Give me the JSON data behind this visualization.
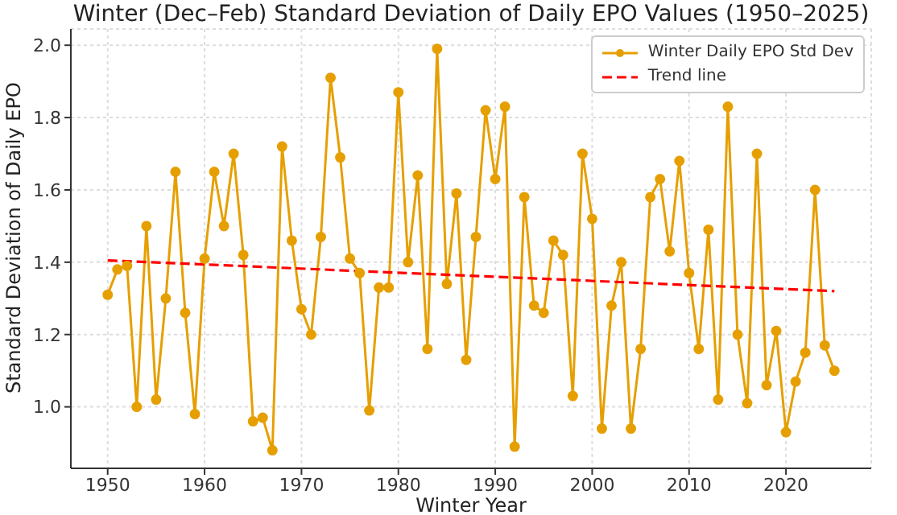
{
  "chart_data": {
    "type": "line",
    "title": "Winter (Dec–Feb) Standard Deviation of Daily EPO Values (1950–2025)",
    "xlabel": "Winter Year",
    "ylabel": "Standard Deviation of Daily EPO",
    "x": [
      1950,
      1951,
      1952,
      1953,
      1954,
      1955,
      1956,
      1957,
      1958,
      1959,
      1960,
      1961,
      1962,
      1963,
      1964,
      1965,
      1966,
      1967,
      1968,
      1969,
      1970,
      1971,
      1972,
      1973,
      1974,
      1975,
      1976,
      1977,
      1978,
      1979,
      1980,
      1981,
      1982,
      1983,
      1984,
      1985,
      1986,
      1987,
      1988,
      1989,
      1990,
      1991,
      1992,
      1993,
      1994,
      1995,
      1996,
      1997,
      1998,
      1999,
      2000,
      2001,
      2002,
      2003,
      2004,
      2005,
      2006,
      2007,
      2008,
      2009,
      2010,
      2011,
      2012,
      2013,
      2014,
      2015,
      2016,
      2017,
      2018,
      2019,
      2020,
      2021,
      2022,
      2023,
      2024,
      2025
    ],
    "series": [
      {
        "name": "Winter Daily EPO Std Dev",
        "color": "#e69f00",
        "marker": "circle",
        "line_style": "solid",
        "values": [
          1.31,
          1.38,
          1.39,
          1.0,
          1.5,
          1.02,
          1.3,
          1.65,
          1.26,
          0.98,
          1.41,
          1.65,
          1.5,
          1.7,
          1.42,
          0.96,
          0.97,
          0.88,
          1.72,
          1.46,
          1.27,
          1.2,
          1.47,
          1.91,
          1.69,
          1.41,
          1.37,
          0.99,
          1.33,
          1.33,
          1.87,
          1.4,
          1.64,
          1.16,
          1.99,
          1.34,
          1.59,
          1.13,
          1.47,
          1.82,
          1.63,
          1.83,
          0.89,
          1.58,
          1.28,
          1.26,
          1.46,
          1.42,
          1.03,
          1.7,
          1.52,
          0.94,
          1.28,
          1.4,
          0.94,
          1.16,
          1.58,
          1.63,
          1.43,
          1.68,
          1.37,
          1.16,
          1.49,
          1.02,
          1.83,
          1.2,
          1.01,
          1.7,
          1.06,
          1.21,
          0.93,
          1.07,
          1.15,
          1.6,
          1.17,
          1.1
        ]
      },
      {
        "name": "Trend line",
        "type": "line",
        "color": "#ff0000",
        "marker": "none",
        "line_style": "dashed",
        "x": [
          1950,
          2025
        ],
        "values": [
          1.405,
          1.32
        ]
      }
    ],
    "xlim": [
      1946.2,
      2028.8
    ],
    "xticks": [
      1950,
      1960,
      1970,
      1980,
      1990,
      2000,
      2010,
      2020
    ],
    "ylim": [
      0.83,
      2.045
    ],
    "yticks": [
      {
        "value": 1,
        "label": "1.0"
      },
      {
        "value": 1.2,
        "label": "1.2"
      },
      {
        "value": 1.4,
        "label": "1.4"
      },
      {
        "value": 1.6,
        "label": "1.6"
      },
      {
        "value": 1.8,
        "label": "1.8"
      },
      {
        "value": 2,
        "label": "2.0"
      }
    ],
    "grid": true,
    "legend": "top right"
  }
}
